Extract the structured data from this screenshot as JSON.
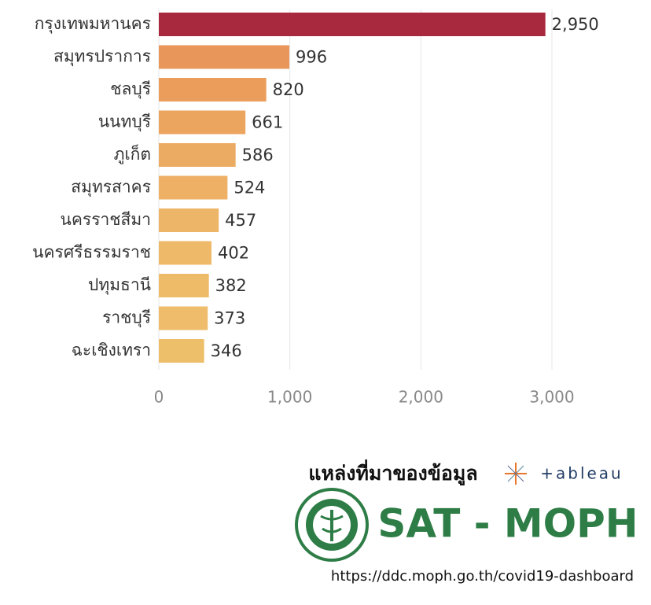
{
  "chart_data": {
    "type": "hbar",
    "categories": [
      "กรุงเทพมหานคร",
      "สมุทรปราการ",
      "ชลบุรี",
      "นนทบุรี",
      "ภูเก็ต",
      "สมุทรสาคร",
      "นครราชสีมา",
      "นครศรีธรรมราช",
      "ปทุมธานี",
      "ราชบุรี",
      "ฉะเชิงเทรา"
    ],
    "values": [
      2950,
      996,
      820,
      661,
      586,
      524,
      457,
      402,
      382,
      373,
      346
    ],
    "value_labels": [
      "2,950",
      "996",
      "820",
      "661",
      "586",
      "524",
      "457",
      "402",
      "382",
      "373",
      "346"
    ],
    "colors": [
      "#a8293d",
      "#e9965a",
      "#eb9e5c",
      "#eca55f",
      "#ecab62",
      "#edb064",
      "#edb567",
      "#eeb968",
      "#eebb69",
      "#eebc6a",
      "#eebf6b"
    ],
    "xlim": [
      0,
      3600
    ],
    "xticks": [
      0,
      {
        "value": 1000,
        "label": "1,000"
      },
      {
        "value": 2000,
        "label": "2,000"
      },
      {
        "value": 3000,
        "label": "3,000"
      }
    ],
    "grid": true
  },
  "source": {
    "label": "แหล่งที่มาของข้อมูล",
    "logo": "+ableau",
    "org": "SAT - MOPH",
    "url": "https://ddc.moph.go.th/covid19-dashboard"
  }
}
